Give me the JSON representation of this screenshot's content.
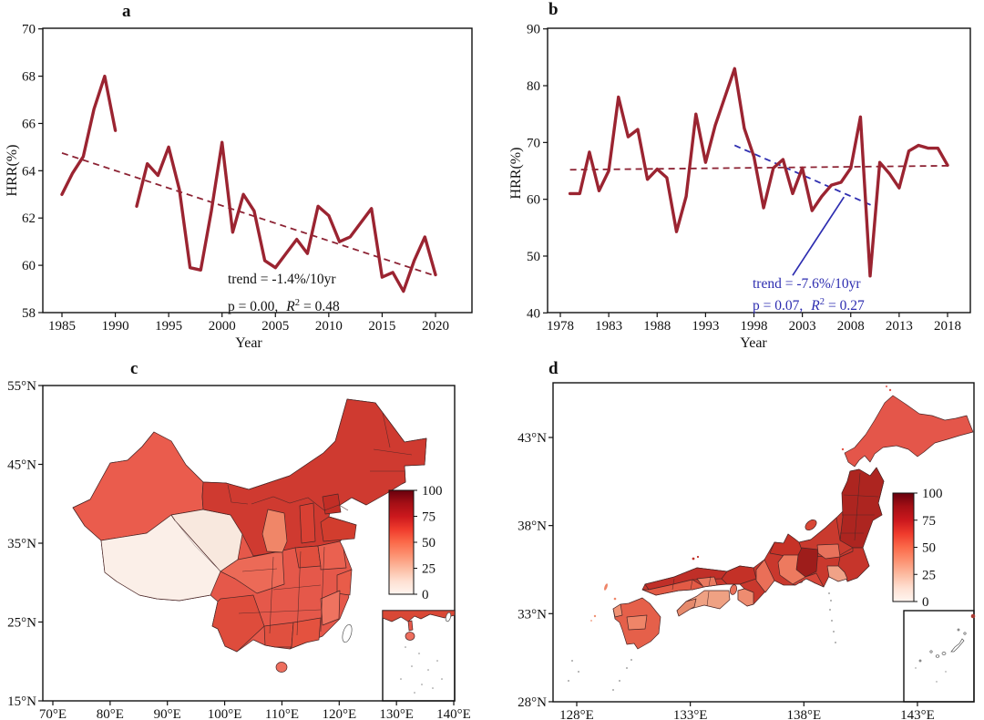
{
  "figure": {
    "background": "#ffffff"
  },
  "panels": {
    "a": {
      "label": "a",
      "xlabel": "Year",
      "ylabel": "HRR(%)",
      "trend_text": "trend = -1.4%/10yr",
      "p_text": "p = 0.00,",
      "r_sym": "R",
      "r_sup": "2",
      "r2_text": "= 0.48"
    },
    "b": {
      "label": "b",
      "xlabel": "Year",
      "ylabel": "HRR(%)",
      "trend_text": "trend = -7.6%/10yr",
      "p_text": "p = 0.07,",
      "r_sym": "R",
      "r_sup": "2",
      "r2_text": "= 0.27"
    },
    "c": {
      "label": "c"
    },
    "d": {
      "label": "d"
    }
  },
  "chart_data": [
    {
      "id": "a",
      "type": "line",
      "title": "HRR annual series (panel a)",
      "xlabel": "Year",
      "ylabel": "HRR(%)",
      "xlim": [
        1983.2,
        2021.8
      ],
      "ylim": [
        58,
        70
      ],
      "xticks": [
        1985,
        1990,
        1995,
        2000,
        2005,
        2010,
        2015,
        2020
      ],
      "yticks": [
        70,
        68,
        66,
        64,
        62,
        60,
        58
      ],
      "x": [
        1985,
        1986,
        1987,
        1988,
        1989,
        1990,
        1991,
        1992,
        1993,
        1994,
        1995,
        1996,
        1997,
        1998,
        1999,
        2000,
        2001,
        2002,
        2003,
        2004,
        2005,
        2006,
        2007,
        2008,
        2009,
        2010,
        2011,
        2012,
        2013,
        2014,
        2015,
        2016,
        2017,
        2018,
        2019,
        2020
      ],
      "y": [
        63.0,
        63.9,
        64.6,
        66.6,
        68.0,
        65.7,
        null,
        62.5,
        64.3,
        63.8,
        65.0,
        63.2,
        59.9,
        59.8,
        62.3,
        65.2,
        61.4,
        63.0,
        62.3,
        60.2,
        59.9,
        60.5,
        61.1,
        60.5,
        62.5,
        62.1,
        61.0,
        61.2,
        61.8,
        62.4,
        59.5,
        59.7,
        58.9,
        60.2,
        61.2,
        59.6
      ],
      "line_color": "#9b2431",
      "trend": {
        "label": "trend = -1.4%/10yr",
        "p": 0.0,
        "R2": 0.48,
        "x": [
          1985,
          2020
        ],
        "y": [
          64.75,
          59.55
        ],
        "color": "#8c2233"
      }
    },
    {
      "id": "b",
      "type": "line",
      "title": "HRR annual series (panel b)",
      "xlabel": "Year",
      "ylabel": "HRR(%)",
      "xlim": [
        1976.8,
        2019.5
      ],
      "ylim": [
        40,
        90
      ],
      "xticks": [
        1978,
        1983,
        1988,
        1993,
        1998,
        2003,
        2008,
        2013,
        2018
      ],
      "yticks": [
        90,
        80,
        70,
        60,
        50,
        40
      ],
      "x": [
        1979,
        1980,
        1981,
        1982,
        1983,
        1984,
        1985,
        1986,
        1987,
        1988,
        1989,
        1990,
        1991,
        1992,
        1993,
        1994,
        1995,
        1996,
        1997,
        1998,
        1999,
        2000,
        2001,
        2002,
        2003,
        2004,
        2005,
        2006,
        2007,
        2008,
        2009,
        2010,
        2011,
        2012,
        2013,
        2014,
        2015,
        2016,
        2017,
        2018
      ],
      "y": [
        61,
        61,
        68.3,
        61.5,
        65,
        78,
        71,
        72.3,
        63.5,
        65.3,
        63.8,
        54.3,
        60.5,
        75,
        66.5,
        73,
        78,
        83,
        72.5,
        67.5,
        58.5,
        65.5,
        67,
        61,
        65.5,
        58,
        60.5,
        62.5,
        63,
        65.5,
        74.5,
        46.5,
        66.5,
        64.5,
        62,
        68.5,
        69.5,
        69,
        69,
        66
      ],
      "line_color": "#9b2431",
      "mean_trend": {
        "x": [
          1979,
          2018
        ],
        "y": [
          65.2,
          65.9
        ],
        "color": "#8c2233"
      },
      "trend": {
        "label": "trend = -7.6%/10yr",
        "p": 0.07,
        "R2": 0.27,
        "x": [
          1996,
          2010.2
        ],
        "y": [
          69.5,
          58.9
        ],
        "color": "#2d2db0",
        "pointer": [
          [
            2002.0,
            46.6
          ],
          [
            2007.3,
            60.4
          ]
        ]
      }
    },
    {
      "id": "c",
      "type": "choropleth",
      "region_label": "China",
      "lat_ticks": [
        "55°N",
        "45°N",
        "35°N",
        "25°N",
        "15°N"
      ],
      "lon_ticks": [
        "70°E",
        "80°E",
        "90°E",
        "100°E",
        "110°E",
        "120°E",
        "130°E",
        "140°E"
      ],
      "colorbar": {
        "min": 0,
        "max": 100,
        "ticks": [
          "100",
          "75",
          "50",
          "25",
          "0"
        ]
      }
    },
    {
      "id": "d",
      "type": "choropleth",
      "region_label": "Japan",
      "lat_ticks": [
        "43°N",
        "38°N",
        "33°N",
        "28°N"
      ],
      "lon_ticks": [
        "128°E",
        "133°E",
        "138°E",
        "143°E"
      ],
      "colorbar": {
        "min": 0,
        "max": 100,
        "ticks": [
          "100",
          "75",
          "50",
          "25",
          "0"
        ]
      }
    }
  ],
  "colorbar_gradient": [
    "#fff5f0",
    "#fee0d2",
    "#fcbba1",
    "#fc9272",
    "#fb6a4a",
    "#ef3b2c",
    "#cb181d",
    "#a50f15",
    "#67000d"
  ],
  "maps": {
    "china": {
      "region_colors": {
        "base": "#e5584a",
        "xinjiang": "#ea5c4d",
        "tibet": "#fbefe8",
        "qinghai": "#f8e8de",
        "north_dark": "#cf3a30",
        "shaanxi_light": "#f08668",
        "beijing_hebei": "#c22e26",
        "shanxi": "#d84033",
        "shandong": "#d23d2e",
        "henan": "#e04f3e",
        "jiangsu_anhui": "#ea6150",
        "zhejiang": "#e85c49",
        "fujian": "#ee7360",
        "sichuan": "#ec6a57",
        "yunnan": "#de4c3c",
        "guangxi": "#e0503f",
        "guangdong": "#e4523f",
        "hainan": "#ee6e5e",
        "inset_coast": "#d94836",
        "taiwan": "#ffffff"
      }
    },
    "japan": {
      "region_colors": {
        "hokkaido": "#e4564a",
        "honshu_base": "#c9382d",
        "tohoku": "#ad2520",
        "niigata": "#c93a2e",
        "hokuriku": "#c63227",
        "nagano": "#9e1d1b",
        "gunma_light": "#e7715b",
        "kanto": "#c6352b",
        "kanto_pale": "#f0a287",
        "gifu": "#ed7a5f",
        "tokai": "#d8473a",
        "kinki_dark": "#c43127",
        "mie": "#ea6f58",
        "wakayama": "#ee8c70",
        "chugoku_north": "#c02f28",
        "chugoku_south": "#e25a45",
        "okayama": "#ea7a60",
        "shikoku": "#efa183",
        "shikoku_west": "#e68a6c",
        "kyushu": "#e5604a",
        "kyushu_mid": "#ef8568",
        "kyushu_west": "#f09274",
        "sado": "#d84736",
        "awaji": "#e8705a",
        "small_islands": "#e4564a"
      }
    }
  }
}
